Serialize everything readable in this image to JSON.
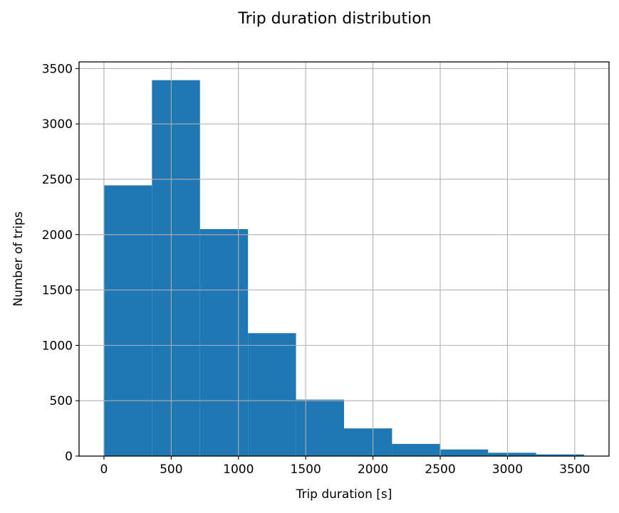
{
  "chart_data": {
    "type": "bar",
    "title": "Trip duration distribution",
    "xlabel": "Trip duration [s]",
    "ylabel": "Number of trips",
    "xlim": [
      -185,
      3755
    ],
    "ylim": [
      0,
      3560
    ],
    "xticks": [
      0,
      500,
      1000,
      1500,
      2000,
      2500,
      3000,
      3500
    ],
    "yticks": [
      0,
      500,
      1000,
      1500,
      2000,
      2500,
      3000,
      3500
    ],
    "grid": true,
    "bar_color": "#1f77b4",
    "bin_edges": [
      0,
      357,
      714,
      1071,
      1428,
      1785,
      2142,
      2499,
      2856,
      3213,
      3570
    ],
    "values": [
      2445,
      3395,
      2050,
      1110,
      510,
      250,
      110,
      60,
      30,
      15
    ]
  }
}
